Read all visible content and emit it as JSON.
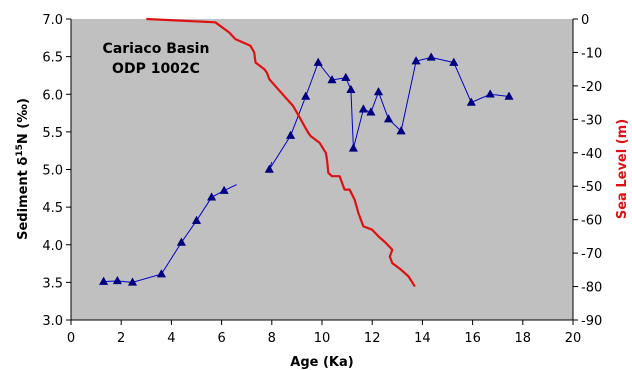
{
  "chart_data": {
    "type": "line",
    "annotation": [
      "Cariaco Basin",
      "ODP 1002C"
    ],
    "xlabel": "Age (Ka)",
    "ylabel_left": {
      "prefix": "Sediment δ",
      "sup": "15",
      "suffix": "N (‰)"
    },
    "ylabel_right": "Sea Level (m)",
    "xlim": [
      0,
      20
    ],
    "ylim_left": [
      3.0,
      7.0
    ],
    "ylim_right": [
      -90,
      0
    ],
    "x_ticks": [
      "0",
      "2",
      "4",
      "6",
      "8",
      "10",
      "12",
      "14",
      "16",
      "18",
      "20"
    ],
    "y_left_ticks": [
      "3.0",
      "3.5",
      "4.0",
      "4.5",
      "5.0",
      "5.5",
      "6.0",
      "6.5",
      "7.0"
    ],
    "y_right_ticks": [
      "0",
      "-10",
      "-20",
      "-30",
      "-40",
      "-50",
      "-60",
      "-70",
      "-80",
      "-90"
    ],
    "grid": false,
    "plot_background": "#c0c0c0",
    "series": [
      {
        "axis": "left",
        "color": "#0000cc",
        "marker": "triangle",
        "segments": [
          [
            [
              1.3,
              3.51
            ],
            [
              1.85,
              3.52
            ],
            [
              2.45,
              3.5
            ],
            [
              3.6,
              3.61
            ],
            [
              4.4,
              4.03
            ],
            [
              5.0,
              4.32
            ],
            [
              5.6,
              4.63
            ],
            [
              6.1,
              4.72
            ],
            [
              6.6,
              4.8
            ]
          ],
          [
            [
              7.9,
              5.0
            ],
            [
              8.0,
              5.1
            ]
          ],
          [
            [
              7.9,
              5.0
            ],
            [
              8.75,
              5.45
            ],
            [
              9.35,
              5.97
            ],
            [
              9.85,
              6.42
            ],
            [
              10.4,
              6.19
            ],
            [
              10.95,
              6.22
            ],
            [
              11.15,
              6.06
            ],
            [
              11.25,
              5.28
            ],
            [
              11.65,
              5.8
            ],
            [
              11.95,
              5.76
            ],
            [
              12.25,
              6.03
            ],
            [
              12.65,
              5.67
            ],
            [
              13.15,
              5.51
            ],
            [
              13.75,
              6.44
            ],
            [
              14.35,
              6.49
            ],
            [
              15.25,
              6.42
            ],
            [
              15.95,
              5.89
            ],
            [
              16.7,
              6.0
            ],
            [
              17.45,
              5.97
            ]
          ]
        ],
        "markers": [
          [
            1.3,
            3.51
          ],
          [
            1.85,
            3.52
          ],
          [
            2.45,
            3.5
          ],
          [
            3.6,
            3.61
          ],
          [
            4.4,
            4.03
          ],
          [
            5.0,
            4.32
          ],
          [
            5.6,
            4.63
          ],
          [
            6.1,
            4.72
          ],
          [
            7.9,
            5.0
          ],
          [
            8.75,
            5.45
          ],
          [
            9.35,
            5.97
          ],
          [
            9.85,
            6.42
          ],
          [
            10.4,
            6.19
          ],
          [
            10.95,
            6.22
          ],
          [
            11.15,
            6.06
          ],
          [
            11.25,
            5.28
          ],
          [
            11.65,
            5.8
          ],
          [
            11.95,
            5.76
          ],
          [
            12.25,
            6.03
          ],
          [
            12.65,
            5.67
          ],
          [
            13.15,
            5.51
          ],
          [
            13.75,
            6.44
          ],
          [
            14.35,
            6.49
          ],
          [
            15.25,
            6.42
          ],
          [
            15.95,
            5.89
          ],
          [
            16.7,
            6.0
          ],
          [
            17.45,
            5.97
          ]
        ]
      },
      {
        "axis": "right",
        "color": "#dd1111",
        "points": [
          [
            3.0,
            0
          ],
          [
            5.75,
            -1
          ],
          [
            6.3,
            -4
          ],
          [
            6.55,
            -6
          ],
          [
            7.15,
            -8
          ],
          [
            7.3,
            -10
          ],
          [
            7.35,
            -13
          ],
          [
            7.7,
            -15
          ],
          [
            7.8,
            -16
          ],
          [
            7.9,
            -18
          ],
          [
            8.25,
            -21
          ],
          [
            8.85,
            -26
          ],
          [
            9.0,
            -28
          ],
          [
            9.15,
            -30
          ],
          [
            9.3,
            -32
          ],
          [
            9.45,
            -34
          ],
          [
            9.55,
            -35
          ],
          [
            9.9,
            -37
          ],
          [
            10.15,
            -40
          ],
          [
            10.2,
            -42
          ],
          [
            10.25,
            -46
          ],
          [
            10.4,
            -47
          ],
          [
            10.7,
            -47
          ],
          [
            10.9,
            -51
          ],
          [
            11.1,
            -51
          ],
          [
            11.3,
            -54
          ],
          [
            11.45,
            -58
          ],
          [
            11.55,
            -60
          ],
          [
            11.65,
            -62
          ],
          [
            12.0,
            -63
          ],
          [
            12.25,
            -65
          ],
          [
            12.55,
            -67
          ],
          [
            12.8,
            -69
          ],
          [
            12.7,
            -71
          ],
          [
            12.8,
            -73
          ],
          [
            13.15,
            -75
          ],
          [
            13.45,
            -77
          ],
          [
            13.7,
            -80
          ]
        ]
      }
    ]
  }
}
